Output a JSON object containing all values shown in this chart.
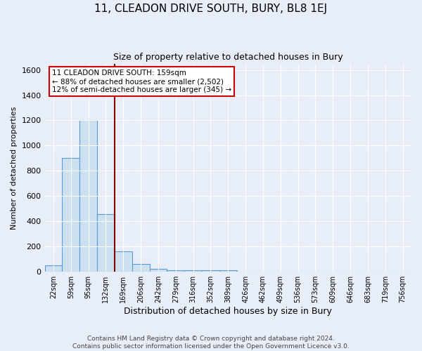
{
  "title": "11, CLEADON DRIVE SOUTH, BURY, BL8 1EJ",
  "subtitle": "Size of property relative to detached houses in Bury",
  "xlabel": "Distribution of detached houses by size in Bury",
  "ylabel": "Number of detached properties",
  "bin_labels": [
    "22sqm",
    "59sqm",
    "95sqm",
    "132sqm",
    "169sqm",
    "206sqm",
    "242sqm",
    "279sqm",
    "316sqm",
    "352sqm",
    "389sqm",
    "426sqm",
    "462sqm",
    "499sqm",
    "536sqm",
    "573sqm",
    "609sqm",
    "646sqm",
    "683sqm",
    "719sqm",
    "756sqm"
  ],
  "bar_heights": [
    50,
    900,
    1200,
    460,
    160,
    60,
    25,
    15,
    10,
    10,
    10,
    0,
    0,
    0,
    0,
    0,
    0,
    0,
    0,
    0,
    0
  ],
  "bar_color": "#cce0f0",
  "bar_edge_color": "#5b9bd5",
  "annotation_text": "11 CLEADON DRIVE SOUTH: 159sqm\n← 88% of detached houses are smaller (2,502)\n12% of semi-detached houses are larger (345) →",
  "vline_color": "#8b0000",
  "annotation_box_color": "#ffffff",
  "annotation_box_edge": "#cc0000",
  "ylim": [
    0,
    1650
  ],
  "yticks": [
    0,
    200,
    400,
    600,
    800,
    1000,
    1200,
    1400,
    1600
  ],
  "footer": "Contains HM Land Registry data © Crown copyright and database right 2024.\nContains public sector information licensed under the Open Government Licence v3.0.",
  "bg_color": "#e8eef8",
  "plot_bg_color": "#e8eef8"
}
